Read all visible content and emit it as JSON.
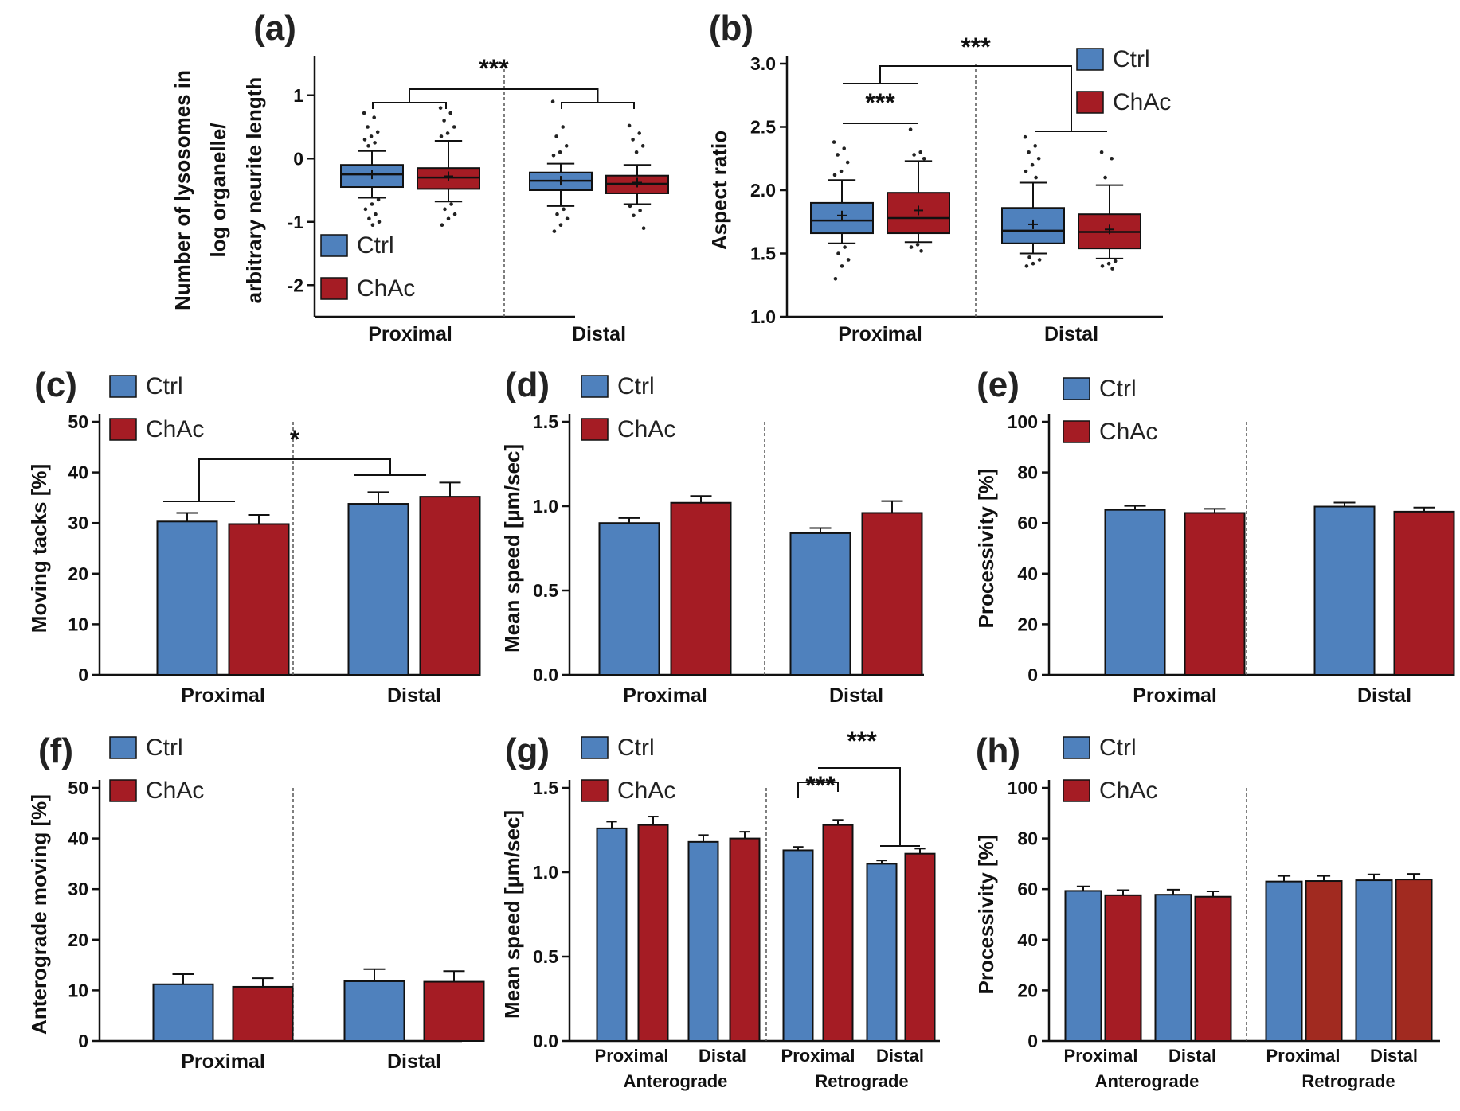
{
  "colors": {
    "ctrl": "#4f81bd",
    "chac": "#a51c24",
    "chac_alt": "#a12a20",
    "axis": "#111111"
  },
  "chart_data": [
    {
      "panel": "(a)",
      "type": "box",
      "ylabel_lines": [
        "Number of lysosomes in",
        "log organelle/",
        "arbitrary neurite length"
      ],
      "ylim": [
        -2.5,
        1.5
      ],
      "yticks": [
        1,
        0,
        -1,
        -2
      ],
      "categories": [
        "Proximal",
        "Distal"
      ],
      "legend": [
        "Ctrl",
        "ChAc"
      ],
      "legend_position": "bottom-left",
      "series": [
        {
          "name": "Ctrl",
          "boxes": [
            {
              "group": "Proximal",
              "q1": -0.45,
              "median": -0.25,
              "q3": -0.1,
              "mean": -0.25,
              "whisker_low": -0.62,
              "whisker_high": 0.12,
              "outliers": [
                0.72,
                0.65,
                0.5,
                0.42,
                0.35,
                0.3,
                0.25,
                0.2,
                -0.65,
                -0.72,
                -0.8,
                -0.88,
                -0.95,
                -1.0,
                -1.05
              ]
            },
            {
              "group": "Distal",
              "q1": -0.5,
              "median": -0.35,
              "q3": -0.22,
              "mean": -0.35,
              "whisker_low": -0.75,
              "whisker_high": -0.08,
              "outliers": [
                0.9,
                0.5,
                0.35,
                0.2,
                0.1,
                0.05,
                -0.8,
                -0.88,
                -0.95,
                -1.05,
                -1.15
              ]
            }
          ]
        },
        {
          "name": "ChAc",
          "boxes": [
            {
              "group": "Proximal",
              "q1": -0.48,
              "median": -0.3,
              "q3": -0.15,
              "mean": -0.28,
              "whisker_low": -0.68,
              "whisker_high": 0.28,
              "outliers": [
                0.8,
                0.72,
                0.6,
                0.5,
                0.4,
                0.35,
                -0.72,
                -0.8,
                -0.88,
                -0.95,
                -1.05
              ]
            },
            {
              "group": "Distal",
              "q1": -0.55,
              "median": -0.4,
              "q3": -0.27,
              "mean": -0.38,
              "whisker_low": -0.72,
              "whisker_high": -0.1,
              "outliers": [
                0.52,
                0.4,
                0.3,
                0.2,
                0.1,
                -0.75,
                -0.82,
                -0.9,
                -1.1
              ]
            }
          ]
        }
      ],
      "significance": [
        {
          "label": "***",
          "between": "Proximal vs Distal"
        }
      ]
    },
    {
      "panel": "(b)",
      "type": "box",
      "ylabel": "Aspect ratio",
      "ylim": [
        1.0,
        3.0
      ],
      "yticks": [
        3.0,
        2.5,
        2.0,
        1.5,
        1.0
      ],
      "categories": [
        "Proximal",
        "Distal"
      ],
      "legend": [
        "Ctrl",
        "ChAc"
      ],
      "legend_position": "top-right",
      "series": [
        {
          "name": "Ctrl",
          "boxes": [
            {
              "group": "Proximal",
              "q1": 1.66,
              "median": 1.76,
              "q3": 1.9,
              "mean": 1.8,
              "whisker_low": 1.58,
              "whisker_high": 2.08,
              "outliers": [
                2.38,
                2.33,
                2.28,
                2.22,
                2.15,
                2.12,
                1.55,
                1.5,
                1.45,
                1.4,
                1.3
              ]
            },
            {
              "group": "Distal",
              "q1": 1.58,
              "median": 1.68,
              "q3": 1.86,
              "mean": 1.73,
              "whisker_low": 1.5,
              "whisker_high": 2.06,
              "outliers": [
                2.42,
                2.35,
                2.3,
                2.25,
                2.2,
                2.15,
                2.1,
                1.47,
                1.45,
                1.42,
                1.4
              ]
            }
          ]
        },
        {
          "name": "ChAc",
          "boxes": [
            {
              "group": "Proximal",
              "q1": 1.66,
              "median": 1.78,
              "q3": 1.98,
              "mean": 1.84,
              "whisker_low": 1.59,
              "whisker_high": 2.23,
              "outliers": [
                2.48,
                2.3,
                2.28,
                2.25,
                1.57,
                1.55,
                1.52
              ]
            },
            {
              "group": "Distal",
              "q1": 1.54,
              "median": 1.67,
              "q3": 1.81,
              "mean": 1.69,
              "whisker_low": 1.46,
              "whisker_high": 2.04,
              "outliers": [
                2.3,
                2.25,
                2.1,
                1.44,
                1.42,
                1.4,
                1.38
              ]
            }
          ]
        }
      ],
      "significance": [
        {
          "label": "***",
          "between": "Proximal Ctrl vs Proximal ChAc"
        },
        {
          "label": "***",
          "between": "Proximal vs Distal"
        }
      ]
    },
    {
      "panel": "(c)",
      "type": "bar",
      "ylabel": "Moving tacks [%]",
      "ylim": [
        0,
        50
      ],
      "yticks": [
        50,
        40,
        30,
        20,
        10,
        0
      ],
      "categories": [
        "Proximal",
        "Distal"
      ],
      "legend": [
        "Ctrl",
        "ChAc"
      ],
      "legend_position": "top-left",
      "series": [
        {
          "name": "Ctrl",
          "values": [
            30.3,
            33.8
          ],
          "errors": [
            1.7,
            2.3
          ]
        },
        {
          "name": "ChAc",
          "values": [
            29.8,
            35.2
          ],
          "errors": [
            1.8,
            2.8
          ]
        }
      ],
      "significance": [
        {
          "label": "*",
          "between": "Proximal vs Distal"
        }
      ]
    },
    {
      "panel": "(d)",
      "type": "bar",
      "ylabel": "Mean speed [µm/sec]",
      "ylim": [
        0,
        1.5
      ],
      "yticks": [
        1.5,
        1.0,
        0.5,
        0
      ],
      "categories": [
        "Proximal",
        "Distal"
      ],
      "legend": [
        "Ctrl",
        "ChAc"
      ],
      "legend_position": "top-left",
      "series": [
        {
          "name": "Ctrl",
          "values": [
            0.9,
            0.84
          ],
          "errors": [
            0.03,
            0.03
          ]
        },
        {
          "name": "ChAc",
          "values": [
            1.02,
            0.96
          ],
          "errors": [
            0.04,
            0.07
          ]
        }
      ]
    },
    {
      "panel": "(e)",
      "type": "bar",
      "ylabel": "Processivity [%]",
      "ylim": [
        0,
        100
      ],
      "yticks": [
        100,
        80,
        60,
        40,
        20,
        0
      ],
      "categories": [
        "Proximal",
        "Distal"
      ],
      "legend": [
        "Ctrl",
        "ChAc"
      ],
      "legend_position": "top-left",
      "series": [
        {
          "name": "Ctrl",
          "values": [
            65.2,
            66.5
          ],
          "errors": [
            1.6,
            1.6
          ]
        },
        {
          "name": "ChAc",
          "values": [
            64.0,
            64.5
          ],
          "errors": [
            1.6,
            1.6
          ]
        }
      ]
    },
    {
      "panel": "(f)",
      "type": "bar",
      "ylabel": "Anterograde moving [%]",
      "ylim": [
        0,
        50
      ],
      "yticks": [
        50,
        40,
        30,
        20,
        10,
        0
      ],
      "categories": [
        "Proximal",
        "Distal"
      ],
      "legend": [
        "Ctrl",
        "ChAc"
      ],
      "legend_position": "top-left",
      "series": [
        {
          "name": "Ctrl",
          "values": [
            11.2,
            11.8
          ],
          "errors": [
            2.0,
            2.4
          ]
        },
        {
          "name": "ChAc",
          "values": [
            10.7,
            11.7
          ],
          "errors": [
            1.7,
            2.1
          ]
        }
      ]
    },
    {
      "panel": "(g)",
      "type": "bar",
      "ylabel": "Mean speed [µm/sec]",
      "ylim": [
        0,
        1.5
      ],
      "yticks": [
        1.5,
        1.0,
        0.5,
        0
      ],
      "categories": [
        "Proximal",
        "Distal",
        "Proximal",
        "Distal"
      ],
      "groups": [
        "Anterograde",
        "Retrograde"
      ],
      "legend": [
        "Ctrl",
        "ChAc"
      ],
      "legend_position": "top-left",
      "series": [
        {
          "name": "Ctrl",
          "values": [
            1.26,
            1.18,
            1.13,
            1.05
          ],
          "errors": [
            0.04,
            0.04,
            0.02,
            0.02
          ]
        },
        {
          "name": "ChAc",
          "values": [
            1.28,
            1.2,
            1.28,
            1.11
          ],
          "errors": [
            0.05,
            0.04,
            0.03,
            0.03
          ]
        }
      ],
      "significance": [
        {
          "label": "***",
          "between": "Retrograde Proximal Ctrl vs ChAc"
        },
        {
          "label": "***",
          "between": "Retrograde Proximal vs Distal"
        }
      ]
    },
    {
      "panel": "(h)",
      "type": "bar",
      "ylabel": "Processivity [%]",
      "ylim": [
        0,
        100
      ],
      "yticks": [
        100,
        80,
        60,
        40,
        20,
        0
      ],
      "categories": [
        "Proximal",
        "Distal",
        "Proximal",
        "Distal"
      ],
      "groups": [
        "Anterograde",
        "Retrograde"
      ],
      "legend": [
        "Ctrl",
        "ChAc"
      ],
      "legend_position": "top-left",
      "series": [
        {
          "name": "Ctrl",
          "values": [
            59.3,
            57.8,
            63.0,
            63.5
          ],
          "errors": [
            1.8,
            2.0,
            2.2,
            2.3
          ]
        },
        {
          "name": "ChAc",
          "values": [
            57.6,
            57.0,
            63.2,
            63.8
          ],
          "errors": [
            2.0,
            2.1,
            2.0,
            2.2
          ]
        }
      ]
    }
  ]
}
